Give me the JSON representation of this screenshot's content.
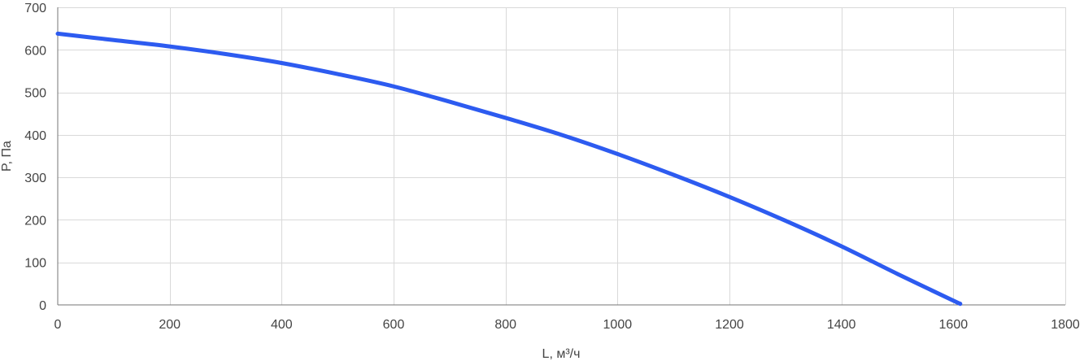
{
  "chart_data": {
    "type": "line",
    "title": "",
    "xlabel": "L, м³/ч",
    "ylabel": "P, Па",
    "xlim": [
      0,
      1800
    ],
    "ylim": [
      0,
      700
    ],
    "x_ticks": [
      0,
      200,
      400,
      600,
      800,
      1000,
      1200,
      1400,
      1600,
      1800
    ],
    "y_ticks": [
      0,
      100,
      200,
      300,
      400,
      500,
      600,
      700
    ],
    "grid": true,
    "legend": "none",
    "series": [
      {
        "color": "#2d5bf0",
        "x": [
          0,
          100,
          200,
          300,
          400,
          500,
          600,
          700,
          800,
          900,
          1000,
          1100,
          1200,
          1300,
          1400,
          1500,
          1600,
          1612
        ],
        "y": [
          638,
          623,
          608,
          590,
          569,
          543,
          514,
          478,
          440,
          400,
          355,
          306,
          254,
          198,
          138,
          73,
          10,
          3
        ]
      }
    ]
  }
}
